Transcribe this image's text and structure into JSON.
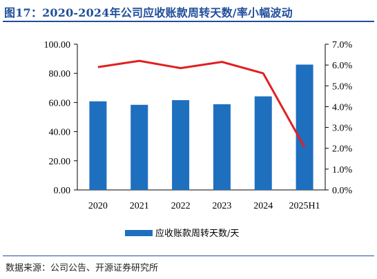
{
  "figure": {
    "title": "图17：2020-2024年公司应收账款周转天数/率小幅波动",
    "source": "数据来源：公司公告、开源证券研究所"
  },
  "colors": {
    "title": "#1f4e9a",
    "bar": "#1f6fbf",
    "line": "#e02020"
  },
  "chart_data": {
    "type": "bar",
    "categories": [
      "2020",
      "2021",
      "2022",
      "2023",
      "2024",
      "2025H1"
    ],
    "series": [
      {
        "name": "应收账款周转天数/天",
        "type": "bar",
        "axis": "left",
        "values": [
          60.8,
          58.4,
          61.6,
          58.8,
          64.2,
          86.0
        ]
      },
      {
        "name": "",
        "type": "line",
        "axis": "right",
        "values": [
          0.059,
          0.062,
          0.0585,
          0.0615,
          0.056,
          0.0205
        ]
      }
    ],
    "ylim": [
      0,
      100
    ],
    "y_ticks": [
      "0.00",
      "20.00",
      "40.00",
      "60.00",
      "80.00",
      "100.00"
    ],
    "y2lim": [
      0,
      0.07
    ],
    "y2_ticks": [
      "0.0%",
      "1.0%",
      "2.0%",
      "3.0%",
      "4.0%",
      "5.0%",
      "6.0%",
      "7.0%"
    ],
    "legend": [
      "应收账款周转天数/天"
    ],
    "legend_position": "bottom",
    "grid": false
  }
}
